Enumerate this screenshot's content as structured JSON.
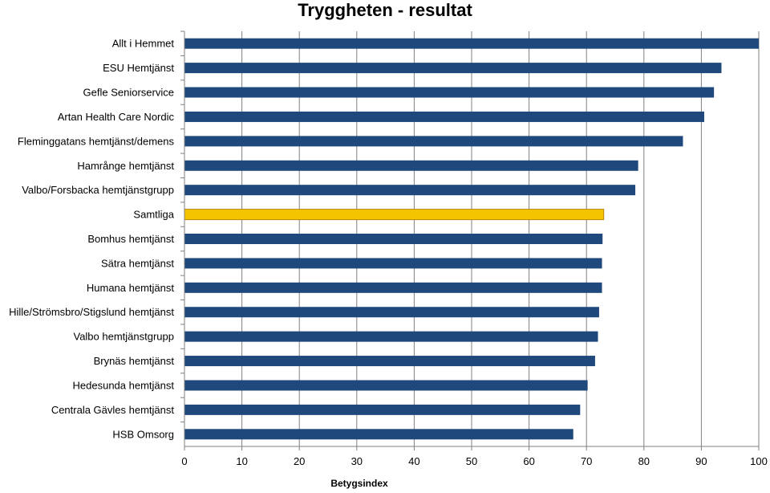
{
  "chart_data": {
    "type": "bar",
    "orientation": "horizontal",
    "title": "Tryggheten - resultat",
    "xlabel": "Betygsindex",
    "ylabel": "",
    "xlim": [
      0,
      100
    ],
    "x_ticks": [
      0,
      10,
      20,
      30,
      40,
      50,
      60,
      70,
      80,
      90,
      100
    ],
    "grid": "vertical major gridlines",
    "legend": "none",
    "colors": {
      "default_bar": "#1F497D",
      "highlight_bar": "#F5C400",
      "highlight_border": "#B8860B",
      "grid": "#808080"
    },
    "highlight_category": "Samtliga",
    "categories": [
      "Allt i Hemmet",
      "ESU Hemtjänst",
      "Gefle Seniorservice",
      "Artan Health Care Nordic",
      "Fleminggatans hemtjänst/demens",
      "Hamrånge hemtjänst",
      "Valbo/Forsbacka hemtjänstgrupp",
      "Samtliga",
      "Bomhus hemtjänst",
      "Sätra hemtjänst",
      "Humana hemtjänst",
      "Hille/Strömsbro/Stigslund hemtjänst",
      "Valbo hemtjänstgrupp",
      "Brynäs hemtjänst",
      "Hedesunda hemtjänst",
      "Centrala Gävles hemtjänst",
      "HSB Omsorg"
    ],
    "values": [
      100,
      93.5,
      92.2,
      90.5,
      86.8,
      79,
      78.5,
      73,
      72.8,
      72.7,
      72.7,
      72.2,
      72,
      71.5,
      70.2,
      68.9,
      67.7
    ]
  }
}
